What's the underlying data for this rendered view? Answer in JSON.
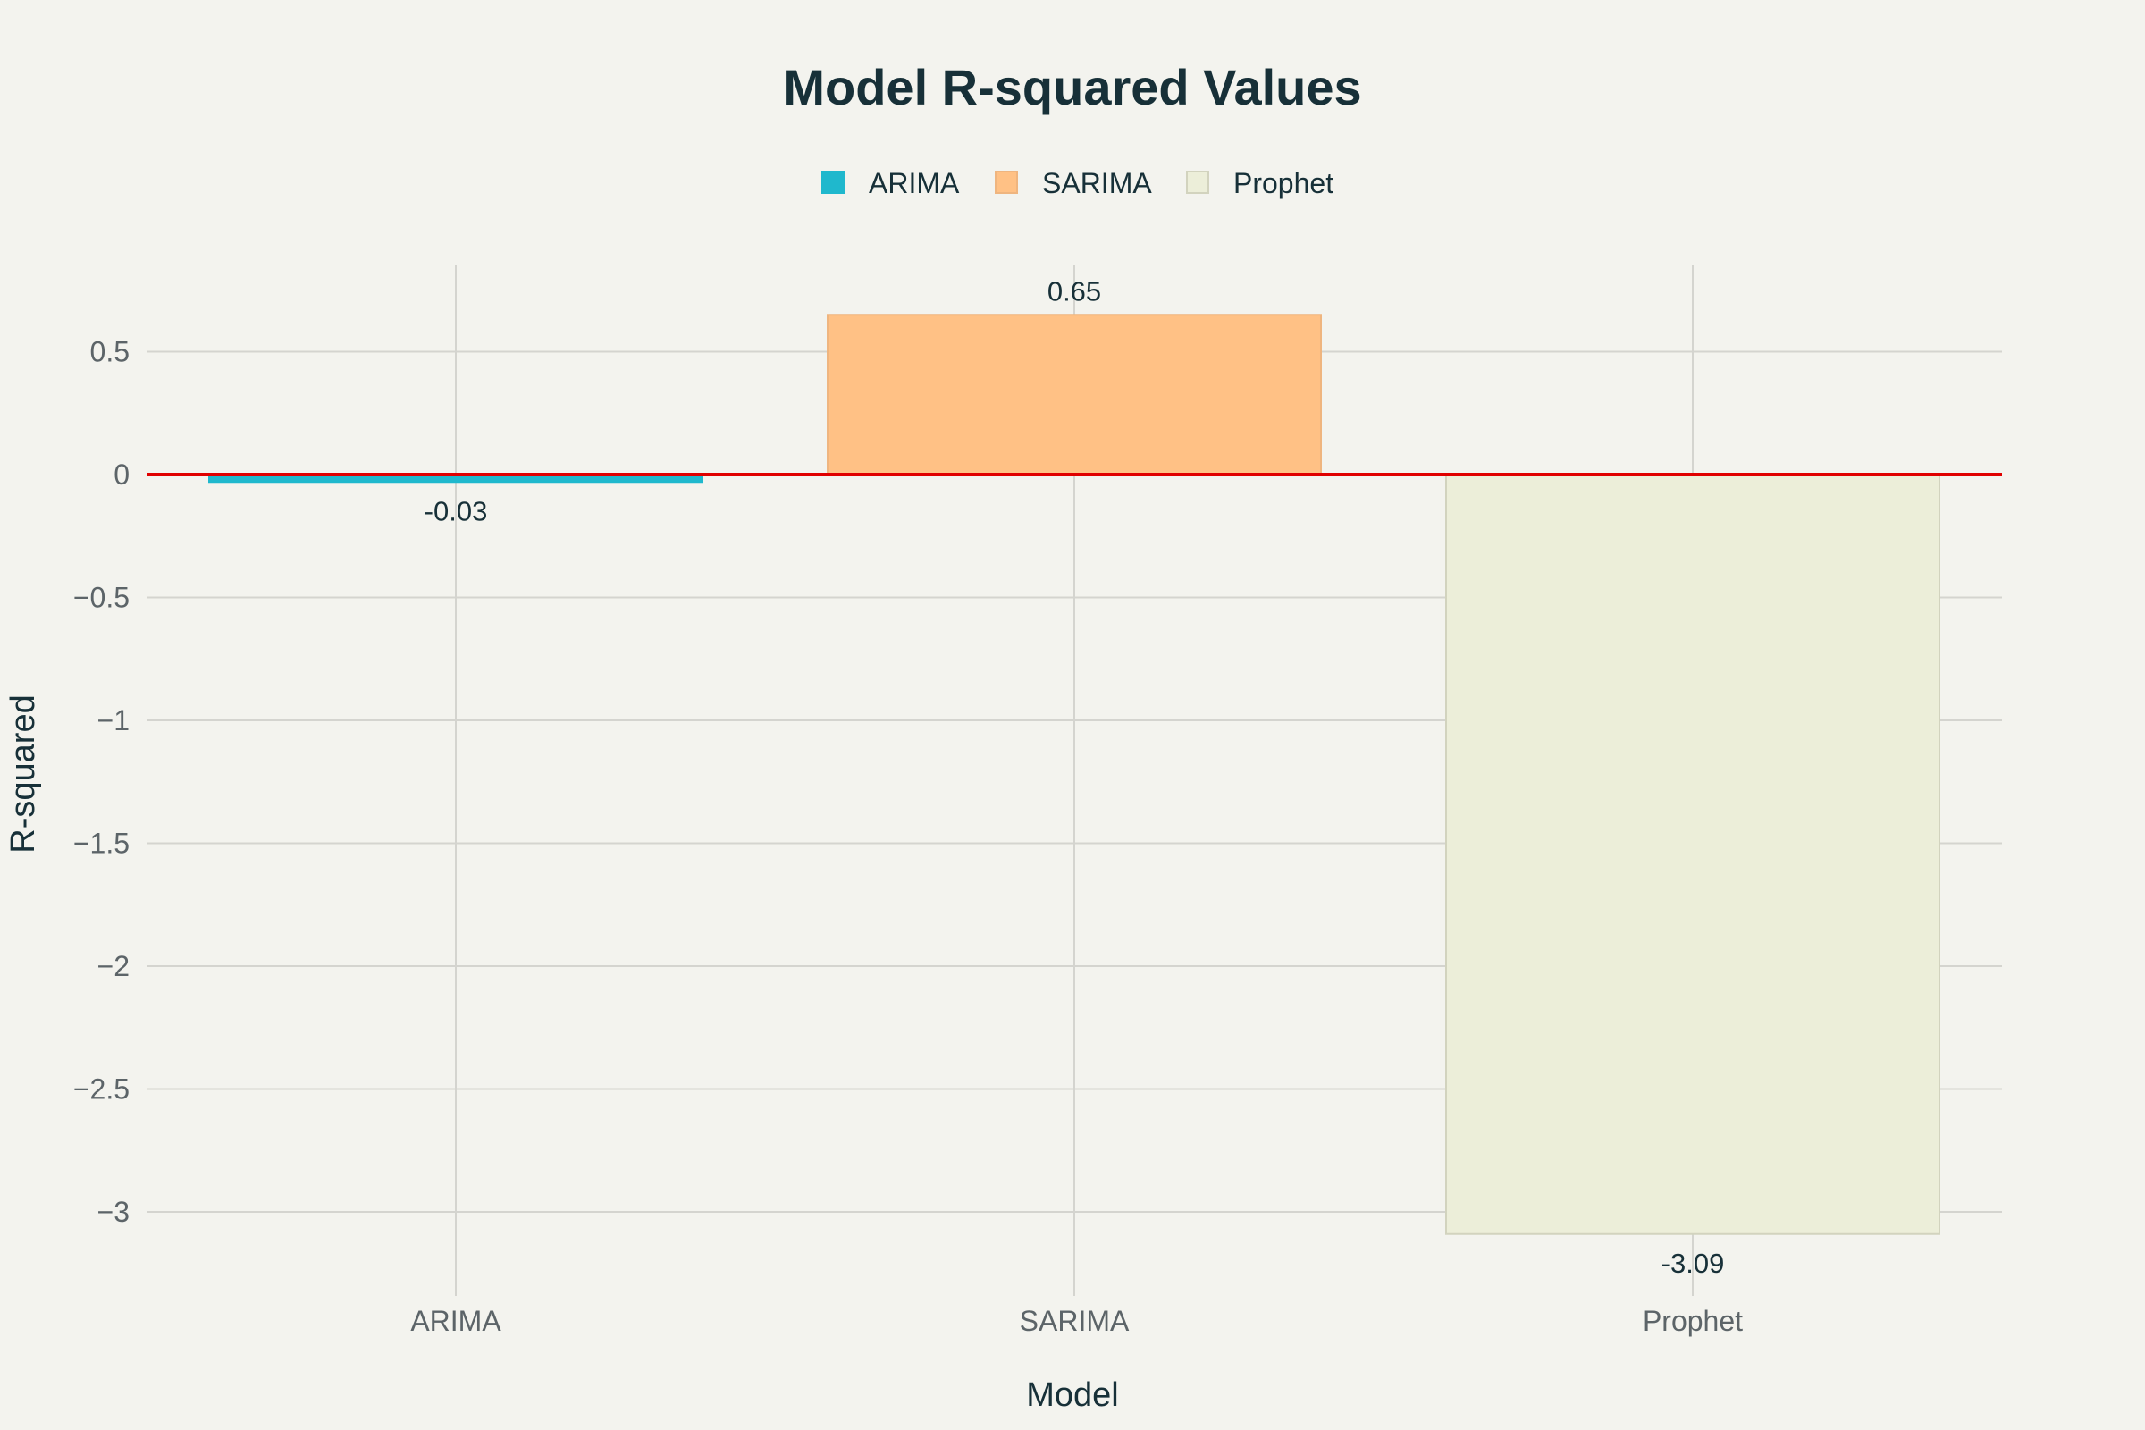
{
  "chart_data": {
    "type": "bar",
    "title": "Model R-squared Values",
    "xlabel": "Model",
    "ylabel": "R-squared",
    "categories": [
      "ARIMA",
      "SARIMA",
      "Prophet"
    ],
    "values": [
      -0.03,
      0.65,
      -3.09
    ],
    "value_labels": [
      "-0.03",
      "0.65",
      "-3.09"
    ],
    "series": [
      {
        "name": "ARIMA",
        "color": "#1fb8cd",
        "border": "#1fb8cd"
      },
      {
        "name": "SARIMA",
        "color": "#ffc185",
        "border": "#efb57f"
      },
      {
        "name": "Prophet",
        "color": "#eceed9",
        "border": "#d2d3be"
      }
    ],
    "yticks": [
      0.5,
      0,
      -0.5,
      -1,
      -1.5,
      -2,
      -2.5,
      -3
    ],
    "ytick_labels": [
      "0.5",
      "0",
      "−0.5",
      "−1",
      "−1.5",
      "−2",
      "−2.5",
      "−3"
    ],
    "ylim": [
      -3.2,
      0.85
    ],
    "reference_line": {
      "y": 0,
      "color": "#e00000"
    },
    "legend_position": "top-center",
    "grid": true
  }
}
